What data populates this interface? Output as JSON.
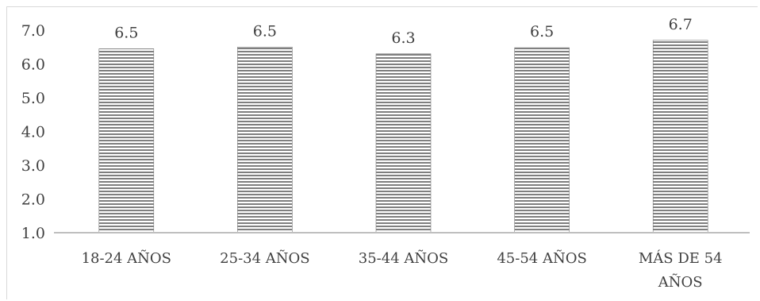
{
  "chart_data": {
    "type": "bar",
    "categories": [
      "18-24 AÑOS",
      "25-34 AÑOS",
      "35-44 AÑOS",
      "45-54 AÑOS",
      "MÁS DE 54 AÑOS"
    ],
    "category_lines": [
      [
        "18-24 AÑOS"
      ],
      [
        "25-34 AÑOS"
      ],
      [
        "35-44 AÑOS"
      ],
      [
        "45-54 AÑOS"
      ],
      [
        "MÁS DE 54",
        "AÑOS"
      ]
    ],
    "values": [
      6.45,
      6.5,
      6.3,
      6.48,
      6.7
    ],
    "data_labels": [
      "6.5",
      "6.5",
      "6.3",
      "6.5",
      "6.7"
    ],
    "y_ticks": [
      "1.0",
      "2.0",
      "3.0",
      "4.0",
      "5.0",
      "6.0",
      "7.0"
    ],
    "ylim": [
      1.0,
      7.0
    ],
    "grid": false,
    "legend": "none",
    "bar_pattern": "horizontal-stripes",
    "colors": {
      "bar_stripe_dark": "#7f7f7f",
      "bar_stripe_light": "#ffffff",
      "axis": "#bfbfbf",
      "text": "#404040"
    }
  }
}
